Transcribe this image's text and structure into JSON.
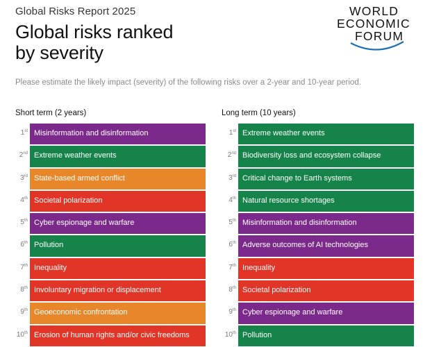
{
  "header": {
    "report_label": "Global Risks Report 2025",
    "headline_line1": "Global risks ranked",
    "headline_line2": "by severity",
    "logo": {
      "line1": "WORLD",
      "line2": "ECONOMIC",
      "line3": "FORUM",
      "arc_color": "#1f6fb5"
    },
    "instruction": "Please estimate the likely impact (severity) of the following risks over a 2-year and 10-year period."
  },
  "colors": {
    "technological": "#7b2a8c",
    "environmental": "#15834a",
    "geopolitical": "#e8872a",
    "societal": "#e03527"
  },
  "short_term": {
    "heading": "Short term (2 years)",
    "items": [
      {
        "rank": "1",
        "suffix": "st",
        "label": "Misinformation and disinformation",
        "color": "#7b2a8c"
      },
      {
        "rank": "2",
        "suffix": "nd",
        "label": "Extreme weather events",
        "color": "#15834a"
      },
      {
        "rank": "3",
        "suffix": "rd",
        "label": "State-based armed conflict",
        "color": "#e8872a"
      },
      {
        "rank": "4",
        "suffix": "th",
        "label": "Societal polarization",
        "color": "#e03527"
      },
      {
        "rank": "5",
        "suffix": "th",
        "label": "Cyber espionage and warfare",
        "color": "#7b2a8c"
      },
      {
        "rank": "6",
        "suffix": "th",
        "label": "Pollution",
        "color": "#15834a"
      },
      {
        "rank": "7",
        "suffix": "th",
        "label": "Inequality",
        "color": "#e03527"
      },
      {
        "rank": "8",
        "suffix": "th",
        "label": "Involuntary migration or displacement",
        "color": "#e03527"
      },
      {
        "rank": "9",
        "suffix": "th",
        "label": "Geoeconomic confrontation",
        "color": "#e8872a"
      },
      {
        "rank": "10",
        "suffix": "th",
        "label": "Erosion of human rights and/or civic freedoms",
        "color": "#e03527"
      }
    ]
  },
  "long_term": {
    "heading": "Long term (10 years)",
    "items": [
      {
        "rank": "1",
        "suffix": "st",
        "label": "Extreme weather events",
        "color": "#15834a"
      },
      {
        "rank": "2",
        "suffix": "nd",
        "label": "Biodiversity loss and ecosystem collapse",
        "color": "#15834a"
      },
      {
        "rank": "3",
        "suffix": "rd",
        "label": "Critical change to Earth systems",
        "color": "#15834a"
      },
      {
        "rank": "4",
        "suffix": "th",
        "label": "Natural resource shortages",
        "color": "#15834a"
      },
      {
        "rank": "5",
        "suffix": "th",
        "label": "Misinformation and disinformation",
        "color": "#7b2a8c"
      },
      {
        "rank": "6",
        "suffix": "th",
        "label": "Adverse outcomes of AI technologies",
        "color": "#7b2a8c"
      },
      {
        "rank": "7",
        "suffix": "th",
        "label": "Inequality",
        "color": "#e03527"
      },
      {
        "rank": "8",
        "suffix": "th",
        "label": "Societal polarization",
        "color": "#e03527"
      },
      {
        "rank": "9",
        "suffix": "th",
        "label": "Cyber espionage and warfare",
        "color": "#7b2a8c"
      },
      {
        "rank": "10",
        "suffix": "th",
        "label": "Pollution",
        "color": "#15834a"
      }
    ]
  }
}
